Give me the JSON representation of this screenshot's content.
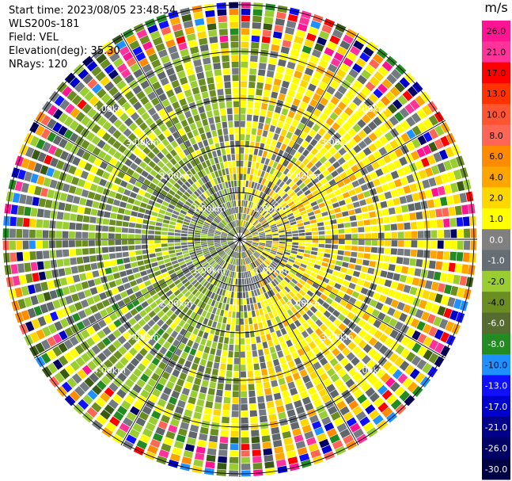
{
  "info": {
    "start_time": "Start time: 2023/08/05 23:48:54",
    "instrument": "WLS200s-181",
    "field": "Field: VEL",
    "elevation": "Elevation(deg): 35.30",
    "nrays": "NRays: 120"
  },
  "colorbar": {
    "unit": "m/s",
    "ticks": [
      "26.0",
      "21.0",
      "17.0",
      "13.0",
      "10.0",
      "8.0",
      "6.0",
      "4.0",
      "2.0",
      "1.0",
      "0.0",
      "-1.0",
      "-2.0",
      "-4.0",
      "-6.0",
      "-8.0",
      "-10.0",
      "-13.0",
      "-17.0",
      "-21.0",
      "-26.0",
      "-30.0"
    ],
    "colors": [
      "#ff1493",
      "#ff3399",
      "#ff0000",
      "#ff3300",
      "#ff5533",
      "#ff6655",
      "#ff8c00",
      "#ffa500",
      "#ffd700",
      "#ffff00",
      "#808080",
      "#666e73",
      "#9acd32",
      "#6b8e23",
      "#556b2f",
      "#228b22",
      "#1e90ff",
      "#1010ff",
      "#0000cd",
      "#00008b",
      "#000066",
      "#000044"
    ]
  },
  "chart_data": {
    "type": "heatmap",
    "subtype": "ppi-polar",
    "field": "VEL",
    "unit": "m/s",
    "nrays": 120,
    "elevation_deg": 35.3,
    "range_ring_labels": [
      "1.00km",
      "2.00km",
      "3.00km",
      "4.00km"
    ],
    "value_range": [
      -30,
      26
    ],
    "pattern": "positive (yellow/orange) velocities on east half, negative (green) on west half, mixed noise at outer ranges"
  }
}
